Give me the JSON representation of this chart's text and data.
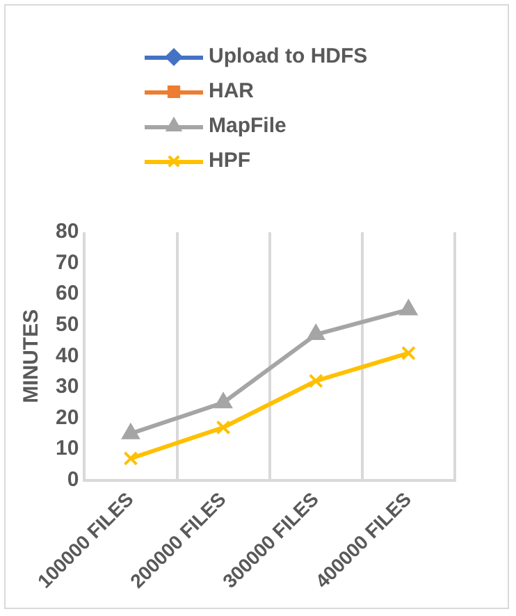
{
  "chart_data": {
    "type": "line",
    "ylabel": "MINUTES",
    "categories": [
      "100000 FILES",
      "200000 FILES",
      "300000 FILES",
      "400000 FILES"
    ],
    "series": [
      {
        "name": "Upload to HDFS",
        "color": "#4472c4",
        "marker": "diamond",
        "values": [
          null,
          null,
          null,
          null
        ]
      },
      {
        "name": "HAR",
        "color": "#ed7d31",
        "marker": "square",
        "values": [
          null,
          null,
          null,
          null
        ]
      },
      {
        "name": "MapFile",
        "color": "#a5a5a5",
        "marker": "triangle",
        "values": [
          15,
          25,
          47,
          55
        ]
      },
      {
        "name": "HPF",
        "color": "#ffc000",
        "marker": "cross",
        "values": [
          7,
          17,
          32,
          41
        ]
      }
    ],
    "ylim": [
      0,
      80
    ],
    "yticks": [
      0,
      10,
      20,
      30,
      40,
      50,
      60,
      70,
      80
    ],
    "grid": "x",
    "legend": "top"
  }
}
